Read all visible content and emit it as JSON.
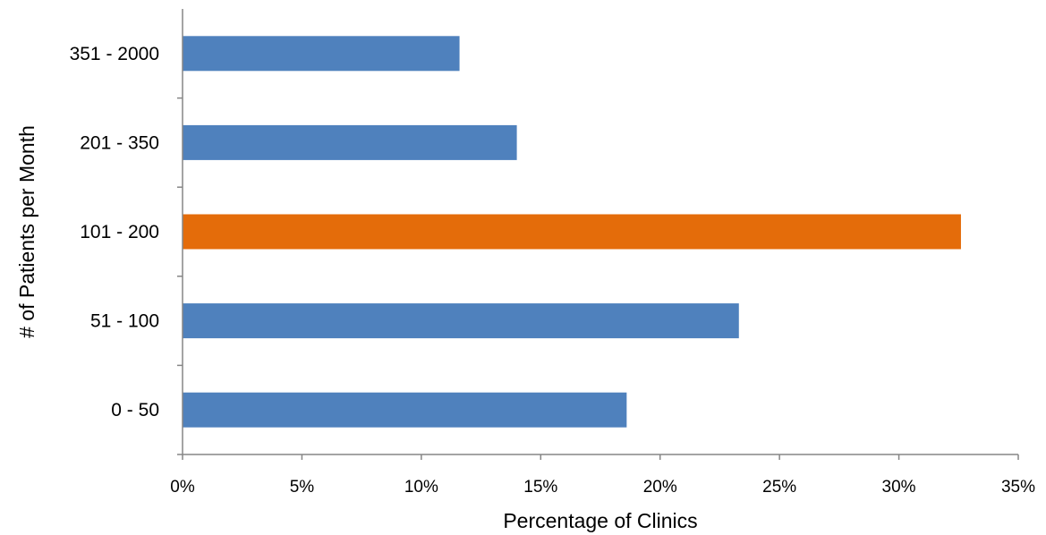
{
  "chart_data": {
    "type": "bar",
    "orientation": "horizontal",
    "categories": [
      "0 - 50",
      "51 - 100",
      "101 - 200",
      "201 - 350",
      "351 - 2000"
    ],
    "values": [
      18.6,
      23.3,
      32.6,
      14.0,
      11.6
    ],
    "colors": [
      "#4F81BD",
      "#4F81BD",
      "#E46C0A",
      "#4F81BD",
      "#4F81BD"
    ],
    "highlight_category": "101 - 200",
    "xlabel": "Percentage of Clinics",
    "ylabel": "# of Patients per Month",
    "xlim": [
      0,
      35
    ],
    "xticks": [
      0,
      5,
      10,
      15,
      20,
      25,
      30,
      35
    ],
    "tick_suffix": "%",
    "grid": false,
    "legend": "none"
  }
}
